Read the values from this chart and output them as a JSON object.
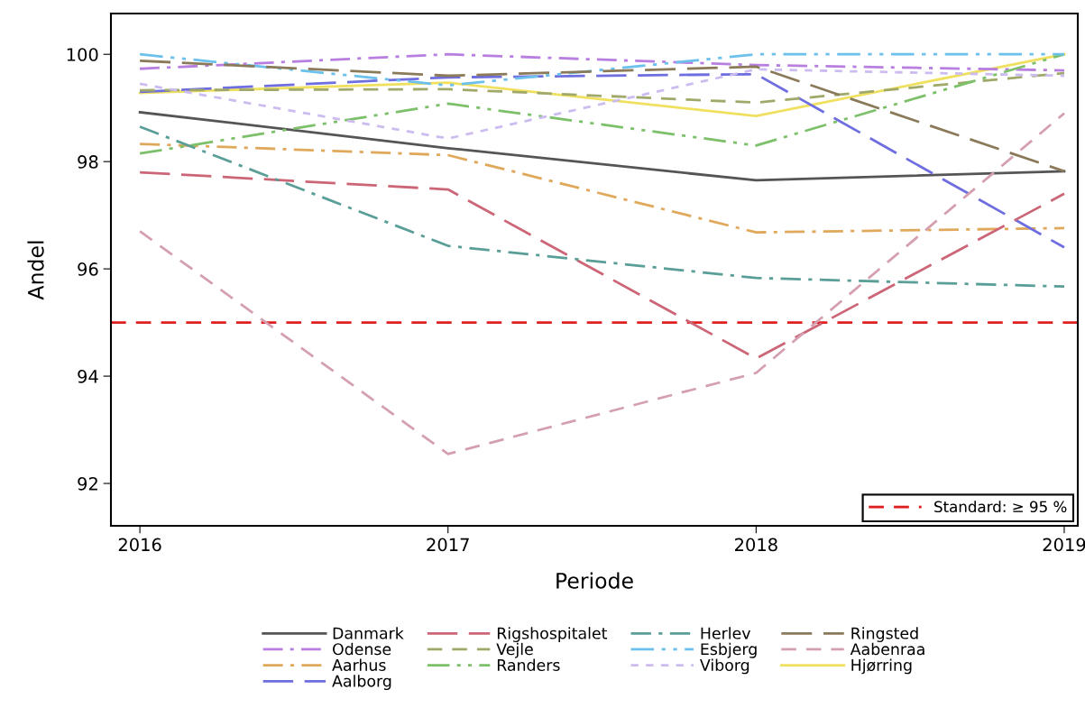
{
  "chart_data": {
    "type": "line",
    "xlabel": "Periode",
    "ylabel": "Andel",
    "x": [
      2016,
      2017,
      2018,
      2019
    ],
    "xlim": [
      2015.906,
      2019.044
    ],
    "xticks": [
      2016,
      2017,
      2018,
      2019
    ],
    "ylim": [
      91.21,
      100.76
    ],
    "yticks": [
      92,
      94,
      96,
      98,
      100
    ],
    "grid": false,
    "legend": "bottom",
    "marker": "none",
    "ref_lines": [
      {
        "axis": "y",
        "value": 95,
        "label": "Standard: ≥ 95 %",
        "color": "#e02020",
        "line_style": "dashed"
      }
    ],
    "series": [
      {
        "name": "Danmark",
        "color": "#555555",
        "line_style": "solid",
        "values": [
          98.92,
          98.25,
          97.65,
          97.82
        ]
      },
      {
        "name": "Odense",
        "color": "#b87fe0",
        "line_style": "dashdot",
        "values": [
          99.73,
          100.0,
          99.8,
          99.7
        ]
      },
      {
        "name": "Aarhus",
        "color": "#e0a85a",
        "line_style": "dashdot",
        "values": [
          98.33,
          98.12,
          96.68,
          96.76
        ]
      },
      {
        "name": "Aalborg",
        "color": "#6e6ee0",
        "line_style": "longdash",
        "values": [
          99.3,
          99.57,
          99.63,
          96.4
        ]
      },
      {
        "name": "Rigshospitalet",
        "color": "#cc6677",
        "line_style": "longdash",
        "values": [
          97.8,
          97.48,
          94.33,
          97.4
        ]
      },
      {
        "name": "Vejle",
        "color": "#a0a86a",
        "line_style": "dashed",
        "values": [
          99.33,
          99.35,
          99.1,
          99.65
        ]
      },
      {
        "name": "Randers",
        "color": "#7cc06a",
        "line_style": "dashdotdot",
        "values": [
          98.15,
          99.08,
          98.3,
          100.0
        ]
      },
      {
        "name": "Herlev",
        "color": "#5a9e98",
        "line_style": "dashdot",
        "values": [
          98.65,
          96.43,
          95.83,
          95.67
        ]
      },
      {
        "name": "Esbjerg",
        "color": "#6cc0ec",
        "line_style": "dashdotdot",
        "values": [
          100.0,
          99.42,
          100.0,
          100.0
        ]
      },
      {
        "name": "Viborg",
        "color": "#ccbcf0",
        "line_style": "dotted",
        "values": [
          99.45,
          98.43,
          99.72,
          99.6
        ]
      },
      {
        "name": "Ringsted",
        "color": "#8b7a5a",
        "line_style": "longdash",
        "values": [
          99.88,
          99.6,
          99.77,
          97.82
        ]
      },
      {
        "name": "Aabenraa",
        "color": "#d4a0b0",
        "line_style": "dashed",
        "values": [
          96.7,
          92.55,
          94.06,
          98.9
        ]
      },
      {
        "name": "Hjørring",
        "color": "#f0e060",
        "line_style": "solid",
        "values": [
          99.28,
          99.47,
          98.85,
          100.0
        ]
      }
    ]
  }
}
